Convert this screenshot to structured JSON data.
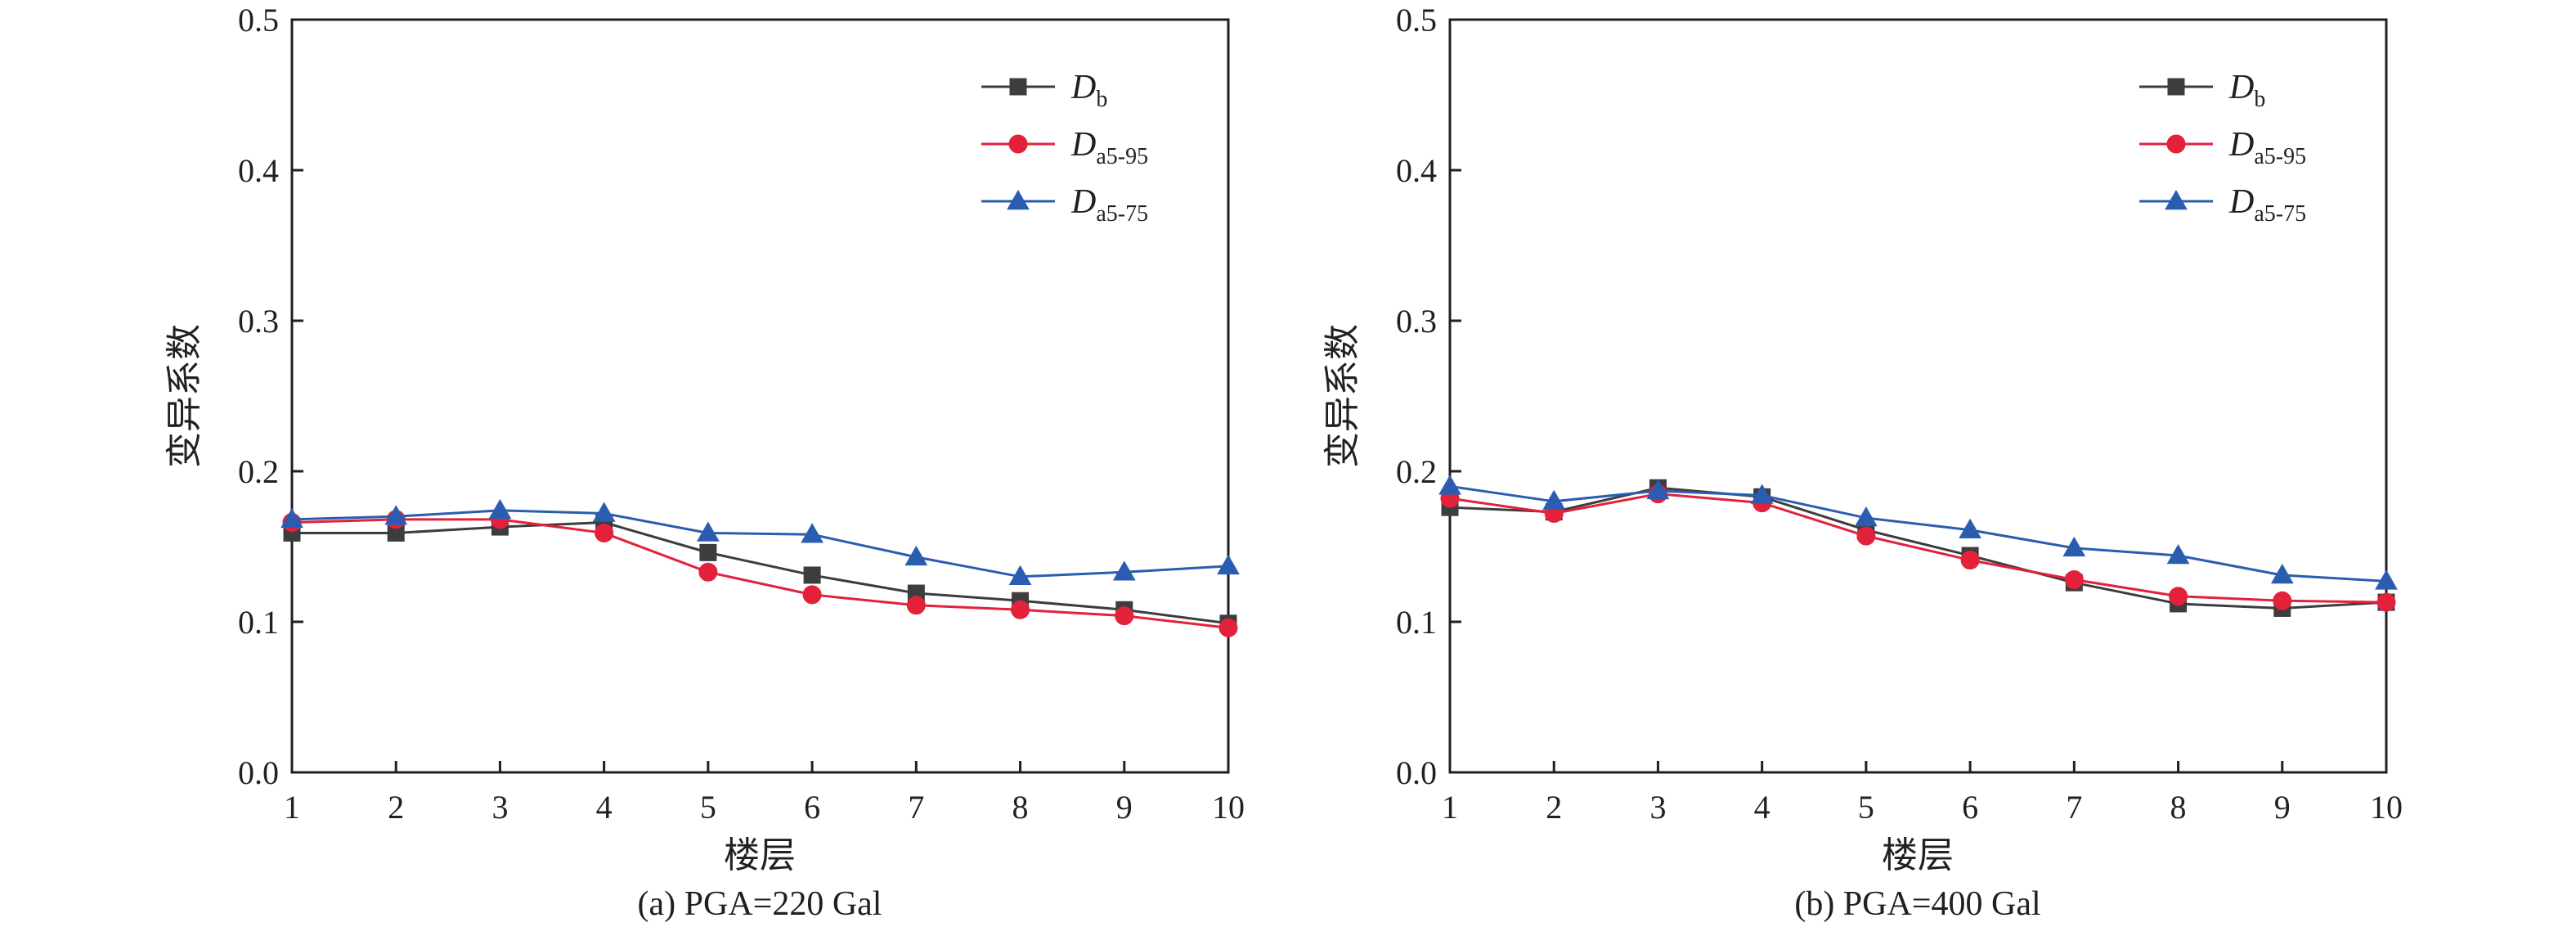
{
  "colors": {
    "Db": "#3d3d3f",
    "Da5_95": "#e3213a",
    "Da5_75": "#2a5db0",
    "axis": "#231f20"
  },
  "chart_data": [
    {
      "type": "line",
      "caption": "(a) PGA=220 Gal",
      "xlabel": "楼层",
      "ylabel": "变异系数",
      "x": [
        1,
        2,
        3,
        4,
        5,
        6,
        7,
        8,
        9,
        10
      ],
      "xlim": [
        1,
        10
      ],
      "ylim": [
        0,
        0.5
      ],
      "yticks": [
        "0.0",
        "0.1",
        "0.2",
        "0.3",
        "0.4",
        "0.5"
      ],
      "legend_position": "top-right",
      "series": [
        {
          "name": "D",
          "subscript": "b",
          "marker": "square",
          "color_key": "Db",
          "values": [
            0.159,
            0.159,
            0.163,
            0.166,
            0.146,
            0.131,
            0.119,
            0.114,
            0.108,
            0.099
          ]
        },
        {
          "name": "D",
          "subscript": "a5-95",
          "marker": "circle",
          "color_key": "Da5_95",
          "values": [
            0.166,
            0.168,
            0.168,
            0.159,
            0.133,
            0.118,
            0.111,
            0.108,
            0.104,
            0.096
          ]
        },
        {
          "name": "D",
          "subscript": "a5-75",
          "marker": "triangle",
          "color_key": "Da5_75",
          "values": [
            0.168,
            0.17,
            0.174,
            0.172,
            0.159,
            0.158,
            0.143,
            0.13,
            0.133,
            0.137
          ]
        }
      ]
    },
    {
      "type": "line",
      "caption": "(b) PGA=400 Gal",
      "xlabel": "楼层",
      "ylabel": "变异系数",
      "x": [
        1,
        2,
        3,
        4,
        5,
        6,
        7,
        8,
        9,
        10
      ],
      "xlim": [
        1,
        10
      ],
      "ylim": [
        0,
        0.5
      ],
      "yticks": [
        "0.0",
        "0.1",
        "0.2",
        "0.3",
        "0.4",
        "0.5"
      ],
      "legend_position": "top-right",
      "series": [
        {
          "name": "D",
          "subscript": "b",
          "marker": "square",
          "color_key": "Db",
          "values": [
            0.176,
            0.173,
            0.189,
            0.183,
            0.161,
            0.144,
            0.126,
            0.112,
            0.109,
            0.113
          ]
        },
        {
          "name": "D",
          "subscript": "a5-95",
          "marker": "circle",
          "color_key": "Da5_95",
          "values": [
            0.182,
            0.172,
            0.185,
            0.179,
            0.157,
            0.141,
            0.128,
            0.117,
            0.114,
            0.113
          ]
        },
        {
          "name": "D",
          "subscript": "a5-75",
          "marker": "triangle",
          "color_key": "Da5_75",
          "values": [
            0.19,
            0.18,
            0.187,
            0.184,
            0.169,
            0.161,
            0.149,
            0.144,
            0.131,
            0.127
          ]
        }
      ]
    }
  ]
}
